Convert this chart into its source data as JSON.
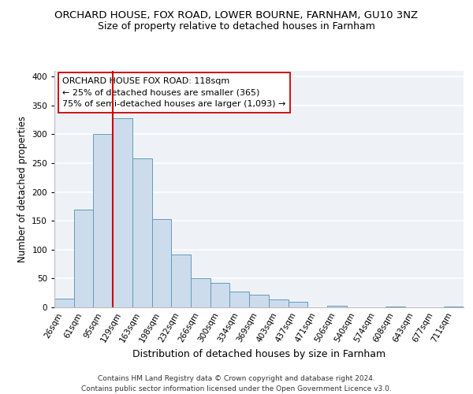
{
  "title": "ORCHARD HOUSE, FOX ROAD, LOWER BOURNE, FARNHAM, GU10 3NZ",
  "subtitle": "Size of property relative to detached houses in Farnham",
  "xlabel": "Distribution of detached houses by size in Farnham",
  "ylabel": "Number of detached properties",
  "bar_labels": [
    "26sqm",
    "61sqm",
    "95sqm",
    "129sqm",
    "163sqm",
    "198sqm",
    "232sqm",
    "266sqm",
    "300sqm",
    "334sqm",
    "369sqm",
    "403sqm",
    "437sqm",
    "471sqm",
    "506sqm",
    "540sqm",
    "574sqm",
    "608sqm",
    "643sqm",
    "677sqm",
    "711sqm"
  ],
  "bar_values": [
    15,
    170,
    300,
    328,
    258,
    153,
    92,
    50,
    42,
    28,
    22,
    13,
    10,
    0,
    3,
    0,
    0,
    2,
    0,
    0,
    2
  ],
  "bar_color": "#ccdcec",
  "bar_edge_color": "#6699bb",
  "vline_x_index": 2.5,
  "vline_color": "#cc0000",
  "annotation_line1": "ORCHARD HOUSE FOX ROAD: 118sqm",
  "annotation_line2": "← 25% of detached houses are smaller (365)",
  "annotation_line3": "75% of semi-detached houses are larger (1,093) →",
  "annotation_box_color": "#ffffff",
  "annotation_box_edge_color": "#cc0000",
  "ylim": [
    0,
    410
  ],
  "yticks": [
    0,
    50,
    100,
    150,
    200,
    250,
    300,
    350,
    400
  ],
  "background_color": "#eef2f7",
  "grid_color": "#ffffff",
  "footer_line1": "Contains HM Land Registry data © Crown copyright and database right 2024.",
  "footer_line2": "Contains public sector information licensed under the Open Government Licence v3.0.",
  "title_fontsize": 9.5,
  "subtitle_fontsize": 9,
  "xlabel_fontsize": 9,
  "ylabel_fontsize": 8.5,
  "tick_fontsize": 7.5,
  "annotation_fontsize": 8,
  "footer_fontsize": 6.5
}
